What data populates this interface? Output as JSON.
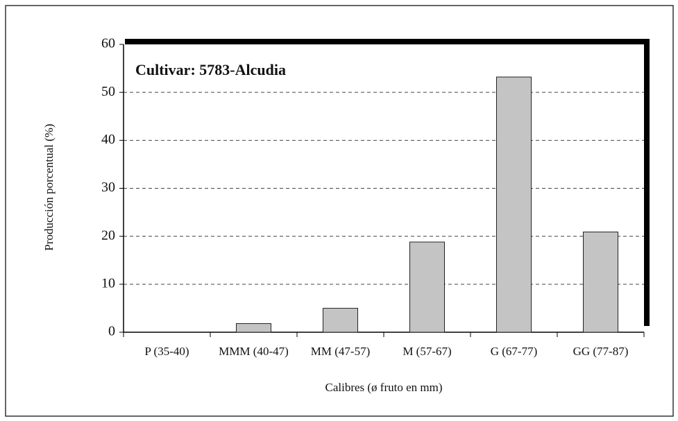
{
  "chart_data": {
    "type": "bar",
    "title": "Cultivar: 5783-Alcudia",
    "x_label": "Calibres (ø fruto en mm)",
    "y_label": "Producción porcentual (%)",
    "categories": [
      "P (35-40)",
      "MMM (40-47)",
      "MM (47-57)",
      "M (57-67)",
      "G (67-77)",
      "GG (77-87)"
    ],
    "values": [
      0,
      1.8,
      5,
      18.8,
      53.2,
      20.9
    ],
    "color": "#c4c4c4",
    "ylim": [
      0,
      60
    ],
    "yticks": [
      0,
      10,
      20,
      30,
      40,
      50,
      60
    ],
    "grid": true
  }
}
